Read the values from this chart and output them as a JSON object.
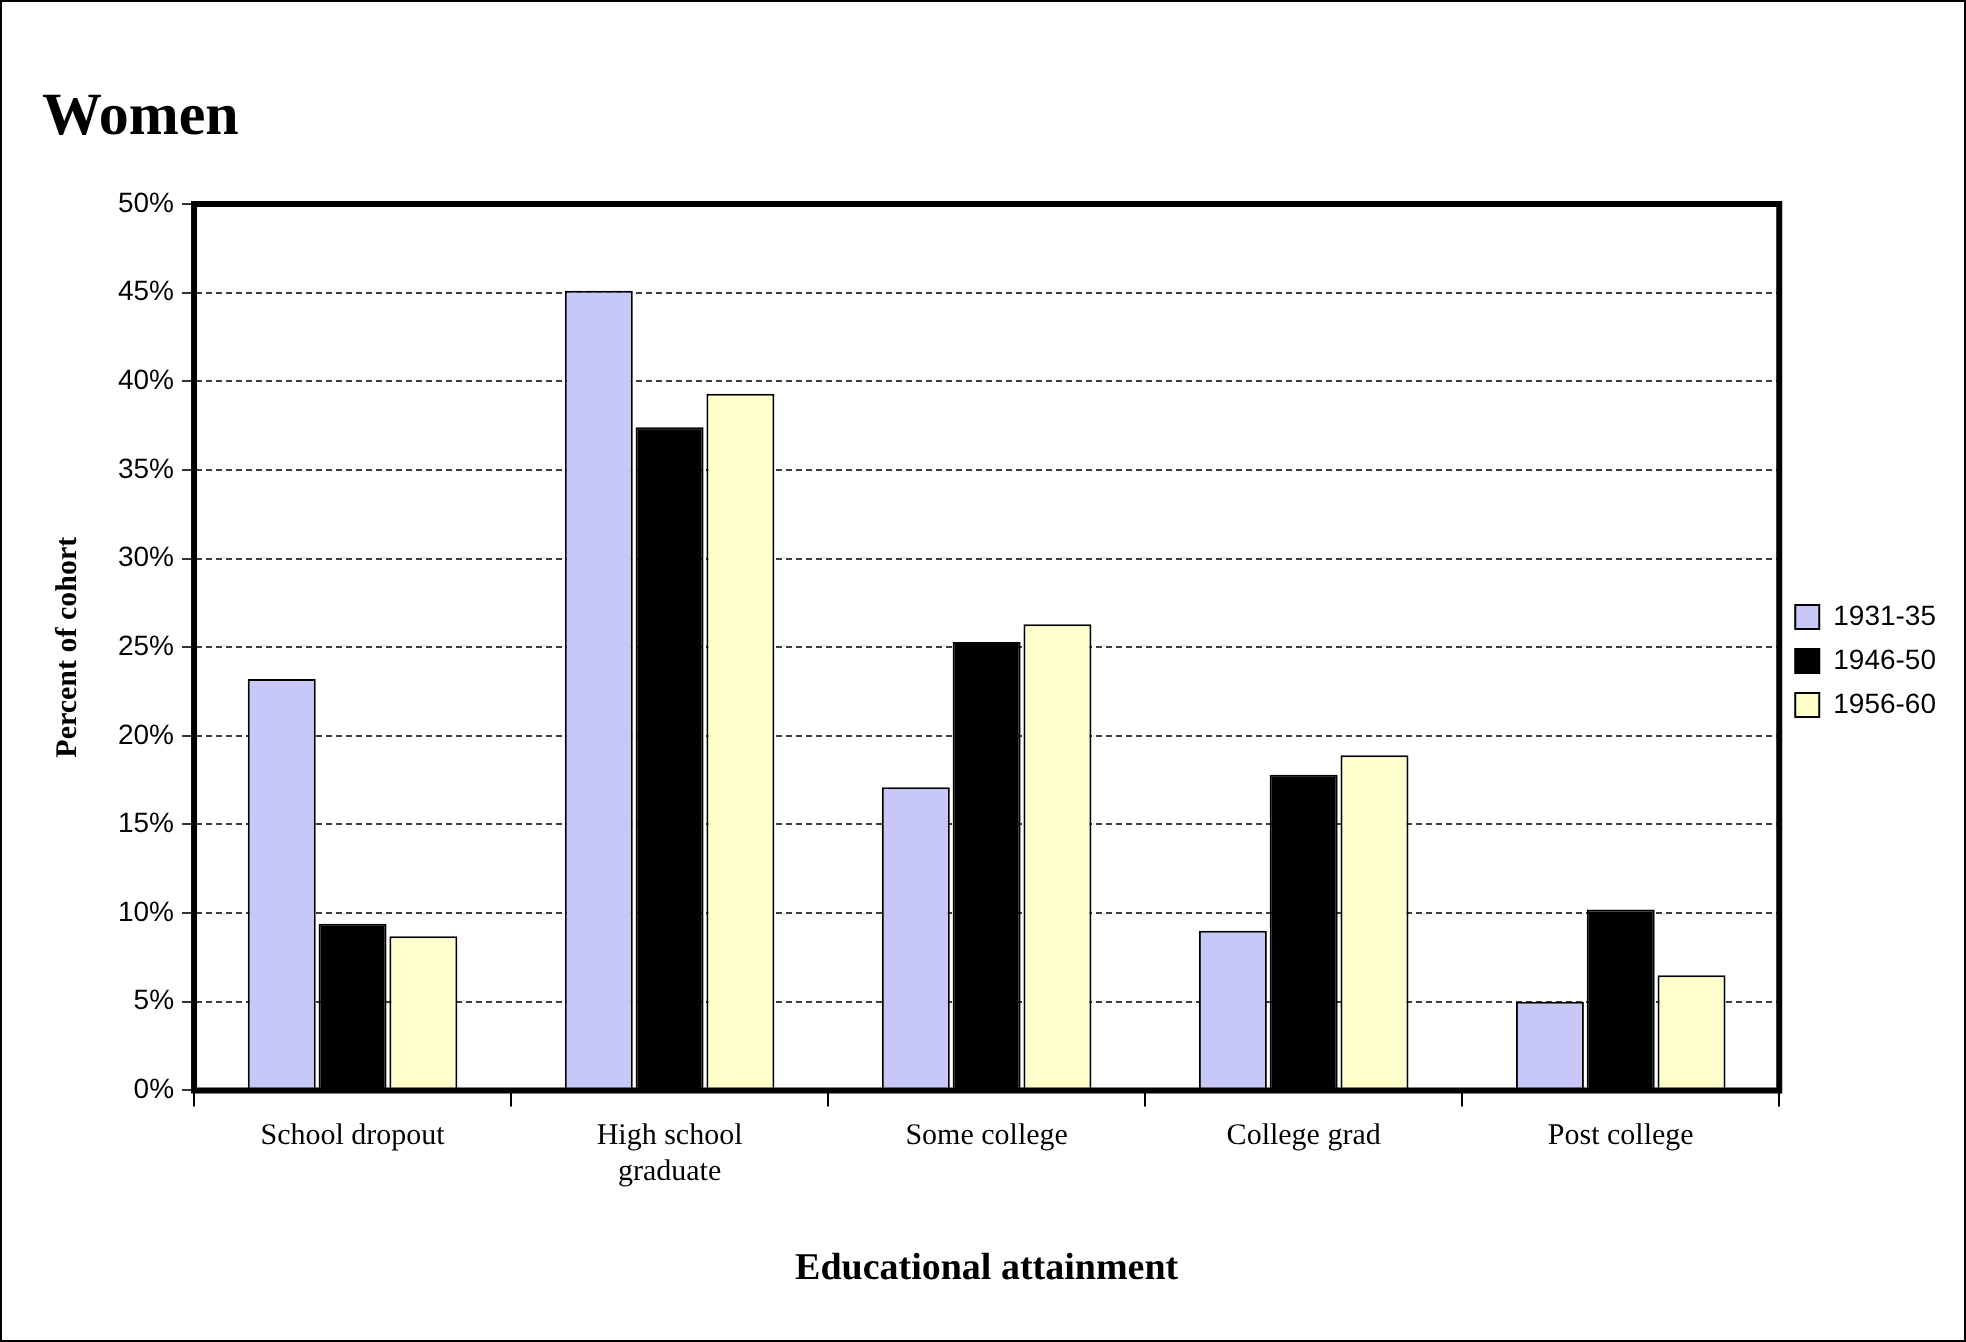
{
  "chart_data": {
    "type": "bar",
    "title": "Women",
    "xlabel": "Educational attainment",
    "ylabel": "Percent of cohort",
    "categories": [
      "School dropout",
      "High school graduate",
      "Some college",
      "College grad",
      "Post college"
    ],
    "series": [
      {
        "name": "1931-35",
        "color": "#c8c8f8",
        "values": [
          23.2,
          45.1,
          17.1,
          9.0,
          5.0
        ]
      },
      {
        "name": "1946-50",
        "color": "#000000",
        "values": [
          9.4,
          37.4,
          25.3,
          17.8,
          10.2
        ]
      },
      {
        "name": "1956-60",
        "color": "#ffffcc",
        "values": [
          8.7,
          39.3,
          26.3,
          18.9,
          6.5
        ]
      }
    ],
    "ylim": [
      0,
      50
    ],
    "yticks": [
      {
        "value": 0,
        "label": "0%"
      },
      {
        "value": 5,
        "label": "5%"
      },
      {
        "value": 10,
        "label": "10%"
      },
      {
        "value": 15,
        "label": "15%"
      },
      {
        "value": 20,
        "label": "20%"
      },
      {
        "value": 25,
        "label": "25%"
      },
      {
        "value": 30,
        "label": "30%"
      },
      {
        "value": 35,
        "label": "35%"
      },
      {
        "value": 40,
        "label": "40%"
      },
      {
        "value": 45,
        "label": "45%"
      },
      {
        "value": 50,
        "label": "50%"
      }
    ],
    "grid": "y",
    "legend": "right"
  }
}
